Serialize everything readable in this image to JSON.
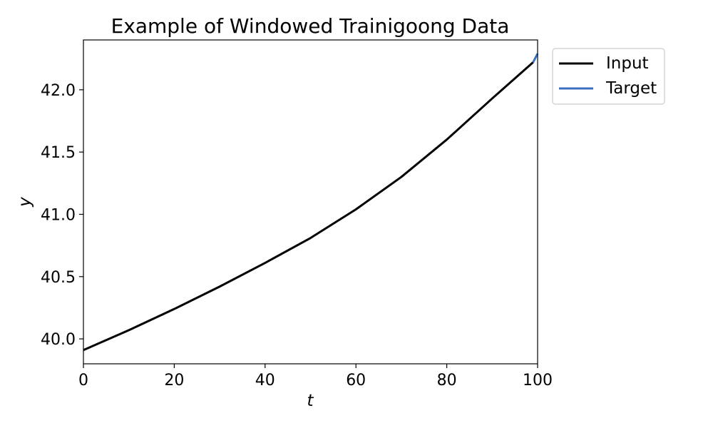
{
  "chart_data": {
    "type": "line",
    "title": "Example of Windowed Trainigoong Data",
    "xlabel": "t",
    "ylabel": "y",
    "xlim": [
      0,
      100
    ],
    "ylim": [
      39.8,
      42.4
    ],
    "xticks": [
      0,
      20,
      40,
      60,
      80,
      100
    ],
    "yticks": [
      40.0,
      40.5,
      41.0,
      41.5,
      42.0
    ],
    "ytick_labels": [
      "40.0",
      "40.5",
      "41.0",
      "41.5",
      "42.0"
    ],
    "legend_position": "outside-top-right",
    "grid": false,
    "series": [
      {
        "name": "Input",
        "color": "#000000",
        "x": [
          0,
          10,
          20,
          30,
          40,
          50,
          60,
          70,
          80,
          90,
          99
        ],
        "y": [
          39.91,
          40.07,
          40.24,
          40.42,
          40.61,
          40.81,
          41.04,
          41.3,
          41.6,
          41.93,
          42.22
        ]
      },
      {
        "name": "Target",
        "color": "#3a6fc0",
        "x": [
          99,
          100
        ],
        "y": [
          42.22,
          42.29
        ]
      }
    ]
  }
}
